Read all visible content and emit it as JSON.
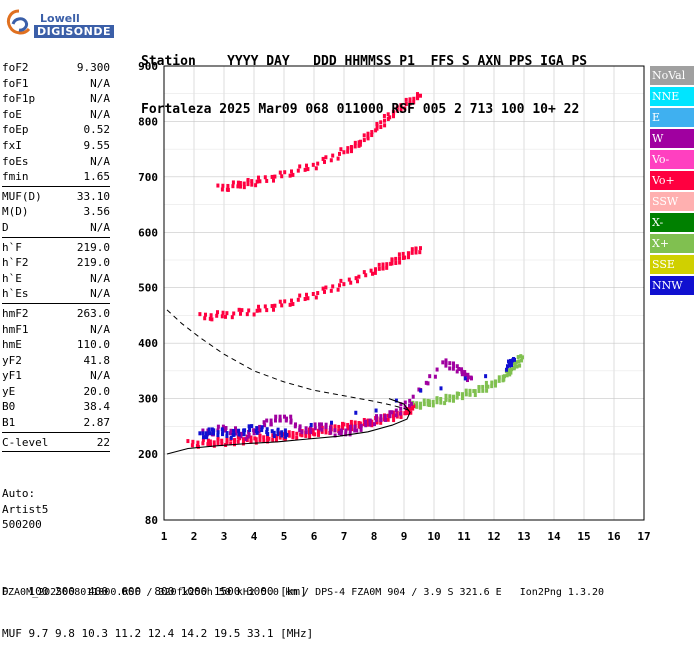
{
  "header": {
    "line1": "Station    YYYY DAY   DDD HHMMSS P1  FFS S AXN PPS IGA PS",
    "line2": "Fortaleza 2025 Mar09 068 011000 RSF 005 2 713 100 10+ 22"
  },
  "logo": {
    "org": "Lowell",
    "product": "DIGISONDE"
  },
  "params": [
    {
      "label": "foF2",
      "value": "9.300"
    },
    {
      "label": "foF1",
      "value": "N/A"
    },
    {
      "label": "foF1p",
      "value": "N/A"
    },
    {
      "label": "foE",
      "value": "N/A"
    },
    {
      "label": "foEp",
      "value": "0.52"
    },
    {
      "label": "fxI",
      "value": "9.55"
    },
    {
      "label": "foEs",
      "value": "N/A"
    },
    {
      "label": "fmin",
      "value": "1.65"
    },
    {
      "label": "MUF(D)",
      "value": "33.10"
    },
    {
      "label": "M(D)",
      "value": "3.56"
    },
    {
      "label": "D",
      "value": "N/A"
    },
    {
      "label": "h`F",
      "value": "219.0"
    },
    {
      "label": "h`F2",
      "value": "219.0"
    },
    {
      "label": "h`E",
      "value": "N/A"
    },
    {
      "label": "h`Es",
      "value": "N/A"
    },
    {
      "label": "hmF2",
      "value": "263.0"
    },
    {
      "label": "hmF1",
      "value": "N/A"
    },
    {
      "label": "hmE",
      "value": "110.0"
    },
    {
      "label": "yF2",
      "value": "41.8"
    },
    {
      "label": "yF1",
      "value": "N/A"
    },
    {
      "label": "yE",
      "value": "20.0"
    },
    {
      "label": "B0",
      "value": "38.4"
    },
    {
      "label": "B1",
      "value": "2.87"
    },
    {
      "label": "C-level",
      "value": "22"
    }
  ],
  "auto": {
    "line1": "Auto:",
    "line2": "Artist5",
    "line3": "500200"
  },
  "legend": [
    {
      "label": "NoVal",
      "color": "#a0a0a0"
    },
    {
      "label": "NNE",
      "color": "#00e5ff"
    },
    {
      "label": "E",
      "color": "#3fb0f0"
    },
    {
      "label": "W",
      "color": "#a000a0"
    },
    {
      "label": "Vo-",
      "color": "#ff40c0"
    },
    {
      "label": "Vo+",
      "color": "#ff0040"
    },
    {
      "label": "SSW",
      "color": "#ffb0b0"
    },
    {
      "label": "X-",
      "color": "#008000"
    },
    {
      "label": "X+",
      "color": "#80c050"
    },
    {
      "label": "SSE",
      "color": "#d0d000"
    },
    {
      "label": "NNW",
      "color": "#1010d0"
    }
  ],
  "dm_table": {
    "d_label": "D",
    "d_values": [
      "100",
      "200",
      "400",
      "600",
      "800",
      "1000",
      "1500",
      "3000"
    ],
    "d_unit": "[km]",
    "muf_label": "MUF",
    "muf_values": [
      "9.7",
      "9.8",
      "10.3",
      "11.2",
      "12.4",
      "14.2",
      "19.5",
      "33.1"
    ],
    "muf_unit": "[MHz]"
  },
  "footer": "FZA0M_2025068011000.RSF / 320fx256h 50 kHz 5.0 km / DPS-4 FZA0M 904 / 3.9 S 321.6 E   Ion2Png 1.3.20",
  "chart_data": {
    "type": "scatter",
    "xlim": [
      1,
      17
    ],
    "ylim": [
      80,
      900
    ],
    "xticks": [
      1,
      2,
      3,
      4,
      5,
      6,
      7,
      8,
      9,
      10,
      11,
      12,
      13,
      14,
      15,
      16,
      17
    ],
    "yticks": [
      80,
      200,
      300,
      400,
      500,
      600,
      700,
      800,
      900
    ],
    "grid": true,
    "traces": [
      {
        "name": "F2 first hop",
        "color": "#ff0040",
        "x": [
          1.8,
          2.5,
          3.0,
          3.5,
          4.0,
          4.5,
          5.0,
          5.5,
          6.0,
          6.5,
          7.0,
          7.5,
          8.0,
          8.5,
          9.0,
          9.3
        ],
        "y": [
          221,
          224,
          226,
          228,
          230,
          233,
          236,
          239,
          243,
          248,
          253,
          258,
          263,
          270,
          278,
          290
        ]
      },
      {
        "name": "F2 X branch",
        "color": "#80c050",
        "x": [
          9.3,
          9.8,
          10.3,
          10.8,
          11.3,
          11.8,
          12.3,
          12.6,
          12.9
        ],
        "y": [
          290,
          296,
          302,
          308,
          316,
          327,
          342,
          360,
          378
        ]
      },
      {
        "name": "F2 second hop",
        "color": "#ff0040",
        "x": [
          2.2,
          3.0,
          4.0,
          5.0,
          6.0,
          7.0,
          8.0,
          8.5,
          9.0,
          9.5
        ],
        "y": [
          450,
          455,
          462,
          475,
          492,
          512,
          535,
          548,
          562,
          575
        ]
      },
      {
        "name": "F2 third hop",
        "color": "#ff0040",
        "x": [
          2.8,
          3.5,
          4.0,
          5.0,
          6.0,
          7.0,
          7.5,
          8.0,
          8.5,
          9.0,
          9.5
        ],
        "y": [
          682,
          690,
          695,
          708,
          725,
          750,
          765,
          790,
          815,
          835,
          850
        ]
      },
      {
        "name": "spread W",
        "color": "#a000a0",
        "x": [
          2.3,
          3.0,
          3.7,
          4.4,
          5.0,
          5.6,
          6.2,
          6.8,
          7.4,
          8.0,
          8.6,
          9.2,
          10.3,
          10.8,
          11.2
        ],
        "y": [
          240,
          250,
          235,
          260,
          270,
          245,
          255,
          240,
          250,
          265,
          275,
          300,
          370,
          355,
          340
        ]
      },
      {
        "name": "scatter NNW",
        "color": "#1010d0",
        "x": [
          2.2,
          2.6,
          3.2,
          3.9,
          4.6,
          5.1,
          12.4,
          12.6
        ],
        "y": [
          235,
          245,
          238,
          250,
          242,
          240,
          360,
          375
        ]
      }
    ],
    "profile": {
      "solid_x": [
        1.1,
        1.8,
        2.8,
        3.8,
        4.8,
        5.8,
        6.8,
        7.8,
        8.6,
        9.1,
        9.2,
        9.0,
        8.5
      ],
      "solid_y": [
        200,
        210,
        215,
        219,
        222,
        227,
        232,
        240,
        252,
        263,
        275,
        290,
        300
      ],
      "dashed_x": [
        1.1,
        1.6,
        2.2,
        3.0,
        4.0,
        5.0,
        6.0,
        7.0,
        8.0,
        8.6,
        9.0,
        9.2
      ],
      "dashed_y": [
        460,
        435,
        410,
        380,
        350,
        330,
        315,
        305,
        295,
        288,
        282,
        278
      ]
    }
  }
}
